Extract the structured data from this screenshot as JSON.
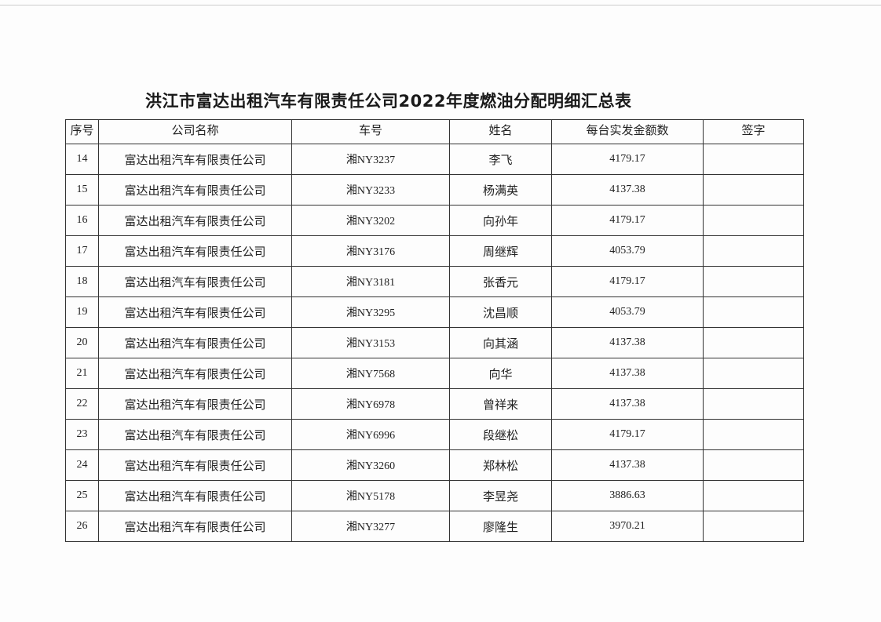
{
  "title": "洪江市富达出租汽车有限责任公司2022年度燃油分配明细汇总表",
  "headers": [
    "序号",
    "公司名称",
    "车号",
    "姓名",
    "每台实发金额数",
    "签字"
  ],
  "rows": [
    {
      "no": "14",
      "company": "富达出租汽车有限责任公司",
      "plate": "湘NY3237",
      "name": "李飞",
      "amount": "4179.17",
      "signature": ""
    },
    {
      "no": "15",
      "company": "富达出租汽车有限责任公司",
      "plate": "湘NY3233",
      "name": "杨满英",
      "amount": "4137.38",
      "signature": ""
    },
    {
      "no": "16",
      "company": "富达出租汽车有限责任公司",
      "plate": "湘NY3202",
      "name": "向孙年",
      "amount": "4179.17",
      "signature": ""
    },
    {
      "no": "17",
      "company": "富达出租汽车有限责任公司",
      "plate": "湘NY3176",
      "name": "周继辉",
      "amount": "4053.79",
      "signature": ""
    },
    {
      "no": "18",
      "company": "富达出租汽车有限责任公司",
      "plate": "湘NY3181",
      "name": "张香元",
      "amount": "4179.17",
      "signature": ""
    },
    {
      "no": "19",
      "company": "富达出租汽车有限责任公司",
      "plate": "湘NY3295",
      "name": "沈昌顺",
      "amount": "4053.79",
      "signature": ""
    },
    {
      "no": "20",
      "company": "富达出租汽车有限责任公司",
      "plate": "湘NY3153",
      "name": "向其涵",
      "amount": "4137.38",
      "signature": ""
    },
    {
      "no": "21",
      "company": "富达出租汽车有限责任公司",
      "plate": "湘NY7568",
      "name": "向华",
      "amount": "4137.38",
      "signature": ""
    },
    {
      "no": "22",
      "company": "富达出租汽车有限责任公司",
      "plate": "湘NY6978",
      "name": "曾祥来",
      "amount": "4137.38",
      "signature": ""
    },
    {
      "no": "23",
      "company": "富达出租汽车有限责任公司",
      "plate": "湘NY6996",
      "name": "段继松",
      "amount": "4179.17",
      "signature": ""
    },
    {
      "no": "24",
      "company": "富达出租汽车有限责任公司",
      "plate": "湘NY3260",
      "name": "郑林松",
      "amount": "4137.38",
      "signature": ""
    },
    {
      "no": "25",
      "company": "富达出租汽车有限责任公司",
      "plate": "湘NY5178",
      "name": "李昱尧",
      "amount": "3886.63",
      "signature": ""
    },
    {
      "no": "26",
      "company": "富达出租汽车有限责任公司",
      "plate": "湘NY3277",
      "name": "廖隆生",
      "amount": "3970.21",
      "signature": ""
    }
  ]
}
